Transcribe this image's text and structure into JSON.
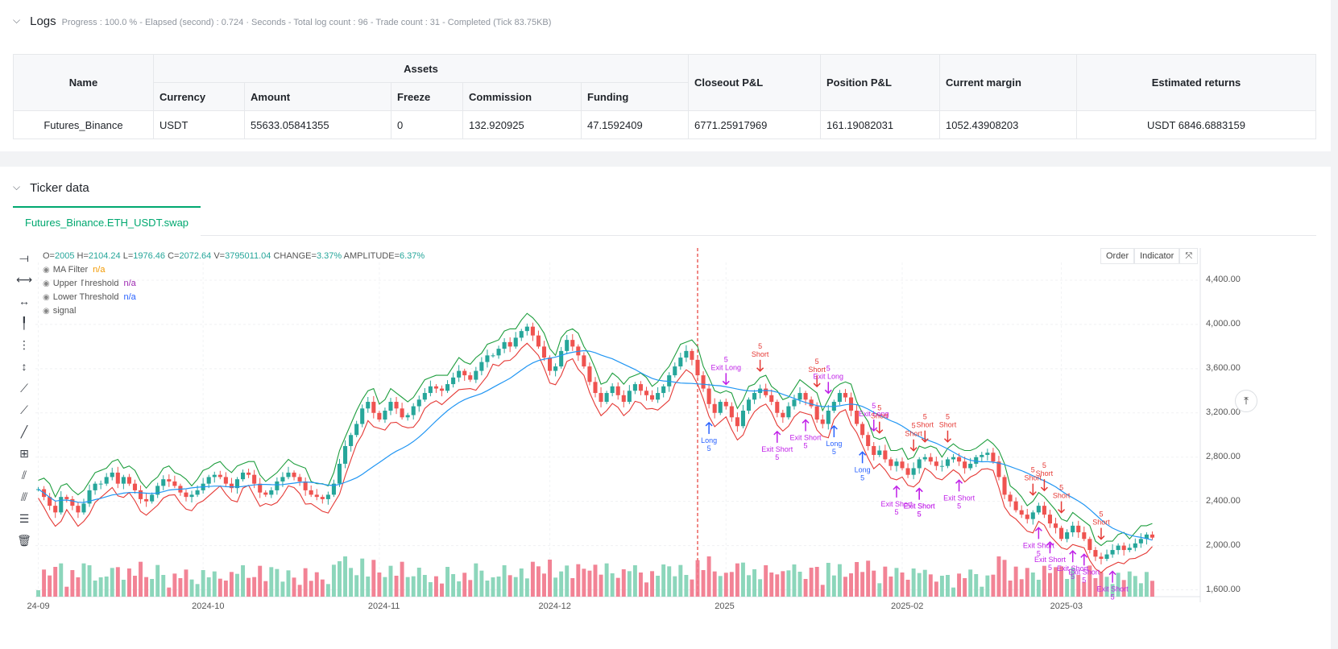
{
  "logs": {
    "title": "Logs",
    "status": "Progress : 100.0 % - Elapsed (second) : 0.724 · Seconds - Total log count : 96 - Trade count : 31 - Completed (Tick 83.75KB)",
    "table": {
      "headers": {
        "name": "Name",
        "assets": "Assets",
        "currency": "Currency",
        "amount": "Amount",
        "freeze": "Freeze",
        "commission": "Commission",
        "funding": "Funding",
        "closeout_pnl": "Closeout P&L",
        "position_pnl": "Position P&L",
        "current_margin": "Current margin",
        "estimated_returns": "Estimated returns"
      },
      "rows": [
        {
          "name": "Futures_Binance",
          "currency": "USDT",
          "amount": "55633.05841355",
          "freeze": "0",
          "commission": "132.920925",
          "funding": "47.1592409",
          "closeout_pnl": "6771.25917969",
          "position_pnl": "161.19082031",
          "current_margin": "1052.43908203",
          "estimated_returns": "USDT 6846.6883159"
        }
      ]
    }
  },
  "ticker": {
    "title": "Ticker data",
    "tab": "Futures_Binance.ETH_USDT.swap",
    "ohlc": {
      "o_label": "O=",
      "o": "2005",
      "h_label": "H=",
      "h": "2104.24",
      "l_label": "L=",
      "l": "1976.46",
      "c_label": "C=",
      "c": "2072.64",
      "v_label": "V=",
      "v": "3795011.04",
      "change_label": "CHANGE=",
      "change": "3.37%",
      "amplitude_label": "AMPLITUDE=",
      "amplitude": "6.37%"
    },
    "legend": [
      {
        "name": "MA Filter",
        "value": "n/a"
      },
      {
        "name": "Upper Threshold",
        "value": "n/a"
      },
      {
        "name": "Lower Threshold",
        "value": "n/a"
      },
      {
        "name": "signal",
        "value": ""
      }
    ],
    "buttons": {
      "order": "Order",
      "indicator": "Indicator",
      "expand": "⤧"
    },
    "colors": {
      "up": "#26a69a",
      "down": "#ef5350",
      "ma": "#2196f3",
      "upper": "#1e9e3e",
      "lower": "#e53935",
      "signal_long": "#2962ff",
      "signal_short": "#e53935",
      "signal_exit": "#c020e8"
    }
  },
  "chart_data": {
    "type": "candlestick",
    "price_axis": [
      "4,400.00",
      "4,000.00",
      "3,600.00",
      "3,200.00",
      "2,800.00",
      "2,400.00",
      "2,000.00",
      "1,600.00"
    ],
    "date_axis": [
      "24-09",
      "2024-10",
      "2024-11",
      "2024-12",
      "2025",
      "2025-02",
      "2025-03"
    ],
    "ylim": [
      1560,
      4560
    ],
    "close": [
      2510,
      2440,
      2360,
      2300,
      2440,
      2420,
      2360,
      2300,
      2380,
      2500,
      2560,
      2560,
      2620,
      2660,
      2560,
      2620,
      2560,
      2500,
      2420,
      2400,
      2460,
      2540,
      2600,
      2580,
      2540,
      2480,
      2440,
      2460,
      2500,
      2560,
      2620,
      2640,
      2620,
      2560,
      2520,
      2600,
      2660,
      2640,
      2560,
      2480,
      2460,
      2500,
      2580,
      2620,
      2660,
      2620,
      2580,
      2500,
      2460,
      2440,
      2420,
      2460,
      2560,
      2740,
      2900,
      3000,
      3100,
      3240,
      3300,
      3200,
      3140,
      3220,
      3300,
      3240,
      3160,
      3180,
      3260,
      3320,
      3380,
      3440,
      3420,
      3400,
      3460,
      3520,
      3580,
      3540,
      3500,
      3580,
      3660,
      3720,
      3720,
      3780,
      3840,
      3800,
      3880,
      3940,
      3980,
      3900,
      3800,
      3700,
      3580,
      3620,
      3760,
      3860,
      3800,
      3720,
      3620,
      3480,
      3380,
      3300,
      3380,
      3440,
      3360,
      3300,
      3400,
      3460,
      3400,
      3360,
      3320,
      3380,
      3440,
      3540,
      3620,
      3700,
      3760,
      3680,
      3540,
      3420,
      3280,
      3200,
      3300,
      3260,
      3160,
      3080,
      3220,
      3320,
      3380,
      3420,
      3360,
      3300,
      3200,
      3160,
      3260,
      3320,
      3380,
      3320,
      3260,
      3140,
      3100,
      3220,
      3300,
      3380,
      3340,
      3220,
      3100,
      3000,
      2900,
      2820,
      2860,
      2780,
      2720,
      2760,
      2700,
      2640,
      2700,
      2780,
      2800,
      2760,
      2720,
      2720,
      2780,
      2800,
      2760,
      2700,
      2740,
      2800,
      2820,
      2840,
      2760,
      2620,
      2460,
      2400,
      2320,
      2280,
      2240,
      2300,
      2360,
      2280,
      2200,
      2160,
      2060,
      2120,
      2180,
      2120,
      2060,
      1960,
      1900,
      1880,
      1920,
      1960,
      2000,
      1960,
      1980,
      2020,
      2060,
      2100,
      2072
    ],
    "series": [
      {
        "name": "MA Filter"
      },
      {
        "name": "Upper Threshold"
      },
      {
        "name": "Lower Threshold"
      },
      {
        "name": "signal"
      }
    ],
    "signals": [
      {
        "i": 121,
        "text": "Exit Long",
        "qty": "5",
        "kind": "exit",
        "dir": "down"
      },
      {
        "i": 118,
        "text": "Long",
        "qty": "5",
        "kind": "long",
        "dir": "up"
      },
      {
        "i": 127,
        "text": "Short",
        "qty": "5",
        "kind": "short",
        "dir": "down"
      },
      {
        "i": 130,
        "text": "Exit Short",
        "qty": "5",
        "kind": "exit",
        "dir": "up"
      },
      {
        "i": 135,
        "text": "Exit Short",
        "qty": "5",
        "kind": "exit",
        "dir": "up"
      },
      {
        "i": 137,
        "text": "Short",
        "qty": "5",
        "kind": "short",
        "dir": "down"
      },
      {
        "i": 139,
        "text": "Exit Long",
        "qty": "5",
        "kind": "exit",
        "dir": "down"
      },
      {
        "i": 140,
        "text": "Long",
        "qty": "5",
        "kind": "long",
        "dir": "up"
      },
      {
        "i": 145,
        "text": "Long",
        "qty": "5",
        "kind": "long",
        "dir": "up"
      },
      {
        "i": 147,
        "text": "Exit Long",
        "qty": "5",
        "kind": "exit",
        "dir": "down"
      },
      {
        "i": 148,
        "text": "Short",
        "qty": "5",
        "kind": "short",
        "dir": "down"
      },
      {
        "i": 151,
        "text": "Exit Short",
        "qty": "5",
        "kind": "exit",
        "dir": "up"
      },
      {
        "i": 154,
        "text": "Short",
        "qty": "5",
        "kind": "short",
        "dir": "down"
      },
      {
        "i": 155,
        "text": "Exit Short",
        "qty": "5",
        "kind": "exit",
        "dir": "up"
      },
      {
        "i": 156,
        "text": "Short",
        "qty": "5",
        "kind": "short",
        "dir": "down"
      },
      {
        "i": 155,
        "text": "Exit Short",
        "qty": "5",
        "kind": "exit",
        "dir": "up"
      },
      {
        "i": 160,
        "text": "Short",
        "qty": "5",
        "kind": "short",
        "dir": "down"
      },
      {
        "i": 162,
        "text": "Exit Short",
        "qty": "5",
        "kind": "exit",
        "dir": "up"
      },
      {
        "i": 175,
        "text": "Short",
        "qty": "5",
        "kind": "short",
        "dir": "down"
      },
      {
        "i": 176,
        "text": "Exit Short",
        "qty": "5",
        "kind": "exit",
        "dir": "up"
      },
      {
        "i": 177,
        "text": "Short",
        "qty": "5",
        "kind": "short",
        "dir": "down"
      },
      {
        "i": 178,
        "text": "Exit Short",
        "qty": "5",
        "kind": "exit",
        "dir": "up"
      },
      {
        "i": 180,
        "text": "Short",
        "qty": "5",
        "kind": "short",
        "dir": "down"
      },
      {
        "i": 182,
        "text": "Exit Short",
        "qty": "5",
        "kind": "exit",
        "dir": "up"
      },
      {
        "i": 184,
        "text": "Exit Short",
        "qty": "5",
        "kind": "exit",
        "dir": "up"
      },
      {
        "i": 187,
        "text": "Short",
        "qty": "5",
        "kind": "short",
        "dir": "down"
      },
      {
        "i": 189,
        "text": "Exit Short",
        "qty": "5",
        "kind": "exit",
        "dir": "up"
      }
    ],
    "marker_index": 116
  }
}
